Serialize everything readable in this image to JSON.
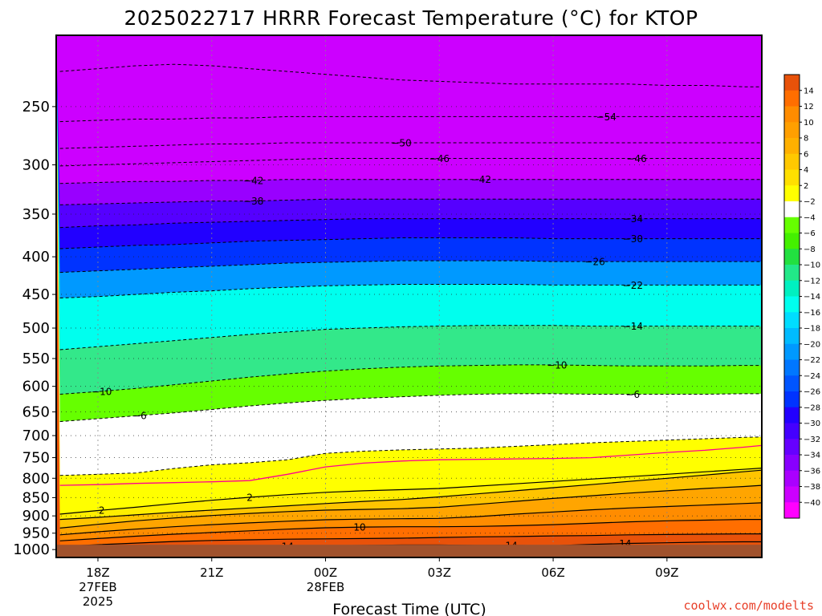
{
  "chart_data": {
    "type": "heatmap",
    "title": "2025022717 HRRR Forecast Temperature (°C) for KTOP",
    "xlabel": "Forecast Time (UTC)",
    "ylabel": "",
    "ylim": [
      200,
      1025
    ],
    "y_scale": "log-pressure",
    "xlim": [
      16.9,
      35.5
    ],
    "grid": true,
    "legend": "colorbar right",
    "x_ticks": [
      {
        "x": 18,
        "label": "18Z",
        "line2": "27FEB",
        "line3": "2025"
      },
      {
        "x": 21,
        "label": "21Z",
        "line2": "",
        "line3": ""
      },
      {
        "x": 24,
        "label": "00Z",
        "line2": "28FEB",
        "line3": ""
      },
      {
        "x": 27,
        "label": "03Z",
        "line2": "",
        "line3": ""
      },
      {
        "x": 30,
        "label": "06Z",
        "line2": "",
        "line3": ""
      },
      {
        "x": 33,
        "label": "09Z",
        "line2": "",
        "line3": ""
      }
    ],
    "y_ticks": [
      250,
      300,
      350,
      400,
      450,
      500,
      550,
      600,
      650,
      700,
      750,
      800,
      850,
      900,
      950,
      1000
    ],
    "ground_pressure": 985,
    "ground_color": "#a0522d",
    "x": [
      17,
      18,
      19,
      20,
      21,
      22,
      23,
      24,
      25,
      26,
      27,
      28,
      29,
      30,
      31,
      32,
      33,
      34,
      35,
      35.5
    ],
    "isotherm_pressures": [
      {
        "t": 14,
        "p": [
          1005,
          1000,
          996,
          994,
          992,
          990,
          989,
          988,
          987,
          986,
          986,
          987,
          987,
          988,
          984,
          981,
          979,
          977,
          976,
          976
        ]
      },
      {
        "t": 12,
        "p": [
          990,
          985,
          980,
          975,
          972,
          970,
          968,
          967,
          966,
          965,
          963,
          961,
          960,
          958,
          957,
          955,
          954,
          953,
          952,
          952
        ]
      },
      {
        "t": 10,
        "p": [
          973,
          966,
          959,
          953,
          948,
          943,
          938,
          934,
          932,
          931,
          931,
          930,
          928,
          925,
          921,
          917,
          914,
          912,
          910,
          910
        ]
      },
      {
        "t": 8,
        "p": [
          955,
          946,
          938,
          931,
          925,
          920,
          915,
          911,
          909,
          908,
          907,
          902,
          895,
          889,
          883,
          878,
          874,
          870,
          866,
          864
        ]
      },
      {
        "t": 6,
        "p": [
          935,
          924,
          914,
          906,
          899,
          893,
          888,
          884,
          882,
          880,
          876,
          868,
          860,
          852,
          845,
          838,
          832,
          826,
          821,
          818
        ]
      },
      {
        "t": 4,
        "p": [
          910,
          904,
          897,
          890,
          884,
          878,
          872,
          866,
          860,
          855,
          848,
          840,
          832,
          824,
          816,
          808,
          800,
          792,
          784,
          780
        ]
      },
      {
        "t": 2,
        "p": [
          895,
          885,
          876,
          866,
          857,
          849,
          842,
          836,
          832,
          829,
          826,
          820,
          814,
          808,
          802,
          796,
          790,
          784,
          778,
          775
        ]
      },
      {
        "t": 1,
        "p": [
          818,
          816,
          813,
          811,
          809,
          806,
          790,
          772,
          763,
          758,
          755,
          754,
          753,
          752,
          750,
          744,
          738,
          733,
          726,
          722
        ]
      },
      {
        "t": -2,
        "p": [
          793,
          790,
          787,
          776,
          767,
          762,
          755,
          740,
          735,
          732,
          730,
          728,
          724,
          720,
          716,
          713,
          710,
          707,
          704,
          703
        ]
      },
      {
        "t": -6,
        "p": [
          670,
          664,
          658,
          652,
          645,
          638,
          632,
          627,
          623,
          620,
          617,
          615,
          614,
          614,
          615,
          615,
          615,
          615,
          614,
          614
        ]
      },
      {
        "t": -10,
        "p": [
          615,
          610,
          604,
          597,
          590,
          583,
          577,
          572,
          568,
          565,
          563,
          562,
          561,
          561,
          562,
          563,
          563,
          563,
          562,
          562
        ]
      },
      {
        "t": -14,
        "p": [
          535,
          530,
          525,
          520,
          515,
          510,
          506,
          502,
          500,
          498,
          497,
          496,
          496,
          496,
          497,
          497,
          497,
          497,
          497,
          497
        ]
      },
      {
        "t": -22,
        "p": [
          455,
          453,
          450,
          447,
          445,
          442,
          440,
          438,
          437,
          436,
          436,
          436,
          436,
          437,
          437,
          437,
          437,
          437,
          437,
          437
        ]
      },
      {
        "t": -26,
        "p": [
          420,
          418,
          416,
          414,
          412,
          410,
          408,
          407,
          406,
          405,
          405,
          405,
          405,
          406,
          406,
          406,
          406,
          406,
          406,
          406
        ]
      },
      {
        "t": -30,
        "p": [
          390,
          388,
          386,
          385,
          383,
          381,
          380,
          379,
          378,
          377,
          377,
          377,
          377,
          378,
          378,
          378,
          378,
          378,
          378,
          378
        ]
      },
      {
        "t": -34,
        "p": [
          365,
          363,
          362,
          360,
          359,
          358,
          357,
          356,
          355,
          355,
          355,
          355,
          355,
          355,
          355,
          355,
          355,
          355,
          355,
          355
        ]
      },
      {
        "t": -38,
        "p": [
          340,
          339,
          338,
          337,
          336,
          336,
          335,
          334,
          334,
          334,
          334,
          334,
          334,
          334,
          334,
          334,
          334,
          334,
          334,
          334
        ]
      },
      {
        "t": -42,
        "p": [
          318,
          317,
          316,
          316,
          315,
          315,
          314,
          314,
          314,
          314,
          314,
          314,
          314,
          314,
          314,
          314,
          314,
          314,
          314,
          314
        ]
      },
      {
        "t": -46,
        "p": [
          301,
          300,
          299,
          298,
          297,
          296,
          295,
          294,
          294,
          294,
          294,
          294,
          294,
          294,
          294,
          294,
          294,
          294,
          294,
          294
        ]
      },
      {
        "t": -50,
        "p": [
          285,
          284,
          283,
          282,
          281,
          281,
          280,
          280,
          280,
          280,
          280,
          280,
          280,
          280,
          280,
          280,
          280,
          280,
          280,
          280
        ]
      },
      {
        "t": -54,
        "p": [
          262,
          261,
          260,
          260,
          259,
          259,
          258,
          258,
          258,
          258,
          258,
          258,
          258,
          258,
          258,
          258,
          258,
          258,
          258,
          258
        ]
      },
      {
        "t": -58,
        "p": [
          224,
          222,
          220,
          219,
          220,
          222,
          224,
          226,
          228,
          230,
          231,
          232,
          233,
          233,
          233,
          233,
          234,
          234,
          235,
          235
        ]
      }
    ],
    "band_colors": [
      {
        "t": 14,
        "color": "#e8520a"
      },
      {
        "t": 12,
        "color": "#ff6e00"
      },
      {
        "t": 10,
        "color": "#ff8c00"
      },
      {
        "t": 8,
        "color": "#ffa500"
      },
      {
        "t": 6,
        "color": "#ffc400"
      },
      {
        "t": 4,
        "color": "#ffee00"
      },
      {
        "t": 2,
        "color": "#ffff00"
      },
      {
        "t": -2,
        "color": "#ffffff"
      },
      {
        "t": -6,
        "color": "#66ff00"
      },
      {
        "t": -10,
        "color": "#33e88a"
      },
      {
        "t": -14,
        "color": "#00ffee"
      },
      {
        "t": -22,
        "color": "#0099ff"
      },
      {
        "t": -26,
        "color": "#0033ff"
      },
      {
        "t": -30,
        "color": "#2200ff"
      },
      {
        "t": -34,
        "color": "#5500ff"
      },
      {
        "t": -38,
        "color": "#9900ff"
      },
      {
        "t": -42,
        "color": "#cc00ff"
      },
      {
        "t": -99,
        "color": "#ff00ff"
      }
    ],
    "colorbar": {
      "labels": [
        "14",
        "12",
        "10",
        "8",
        "6",
        "4",
        "2",
        "−2",
        "−4",
        "−6",
        "−8",
        "−10",
        "−12",
        "−14",
        "−16",
        "−18",
        "−20",
        "−22",
        "−24",
        "−26",
        "−28",
        "−30",
        "−32",
        "−34",
        "−36",
        "−38",
        "−40"
      ],
      "colors": [
        "#e8520a",
        "#ff6e00",
        "#ff8c00",
        "#ff9f00",
        "#ffb000",
        "#ffc800",
        "#ffe000",
        "#ffff00",
        "#ffffff",
        "#66ff00",
        "#44f000",
        "#22e040",
        "#22e888",
        "#00f0c0",
        "#00ffee",
        "#00ddff",
        "#00bbff",
        "#0099ff",
        "#0077ff",
        "#0055ff",
        "#0033ff",
        "#2200ff",
        "#4400ff",
        "#6600ff",
        "#8800ff",
        "#aa00ff",
        "#cc00ff",
        "#ff00ff"
      ]
    },
    "contour_labels": [
      {
        "t": "-54",
        "x": 31.4
      },
      {
        "t": "-50",
        "x": 26.0
      },
      {
        "t": "-46",
        "x": 27.0
      },
      {
        "t": "-46",
        "x": 32.2
      },
      {
        "t": "-42",
        "x": 22.1
      },
      {
        "t": "-42",
        "x": 28.1
      },
      {
        "t": "-38",
        "x": 22.1
      },
      {
        "t": "-34",
        "x": 32.1
      },
      {
        "t": "-30",
        "x": 32.1
      },
      {
        "t": "-26",
        "x": 31.1
      },
      {
        "t": "-22",
        "x": 32.1
      },
      {
        "t": "-14",
        "x": 32.1
      },
      {
        "t": "-10",
        "x": 18.1
      },
      {
        "t": "-10",
        "x": 30.1
      },
      {
        "t": "-6",
        "x": 19.1
      },
      {
        "t": "-6",
        "x": 32.1
      },
      {
        "t": "2",
        "x": 18.1
      },
      {
        "t": "2",
        "x": 22.0
      },
      {
        "t": "10",
        "x": 24.9
      },
      {
        "t": "14",
        "x": 23.0
      },
      {
        "t": "14",
        "x": 28.9
      },
      {
        "t": "14",
        "x": 31.9
      }
    ],
    "credit": "coolwx.com/modelts",
    "credit_color": "#e8402a",
    "freezing_line_color": "#ff0090"
  }
}
